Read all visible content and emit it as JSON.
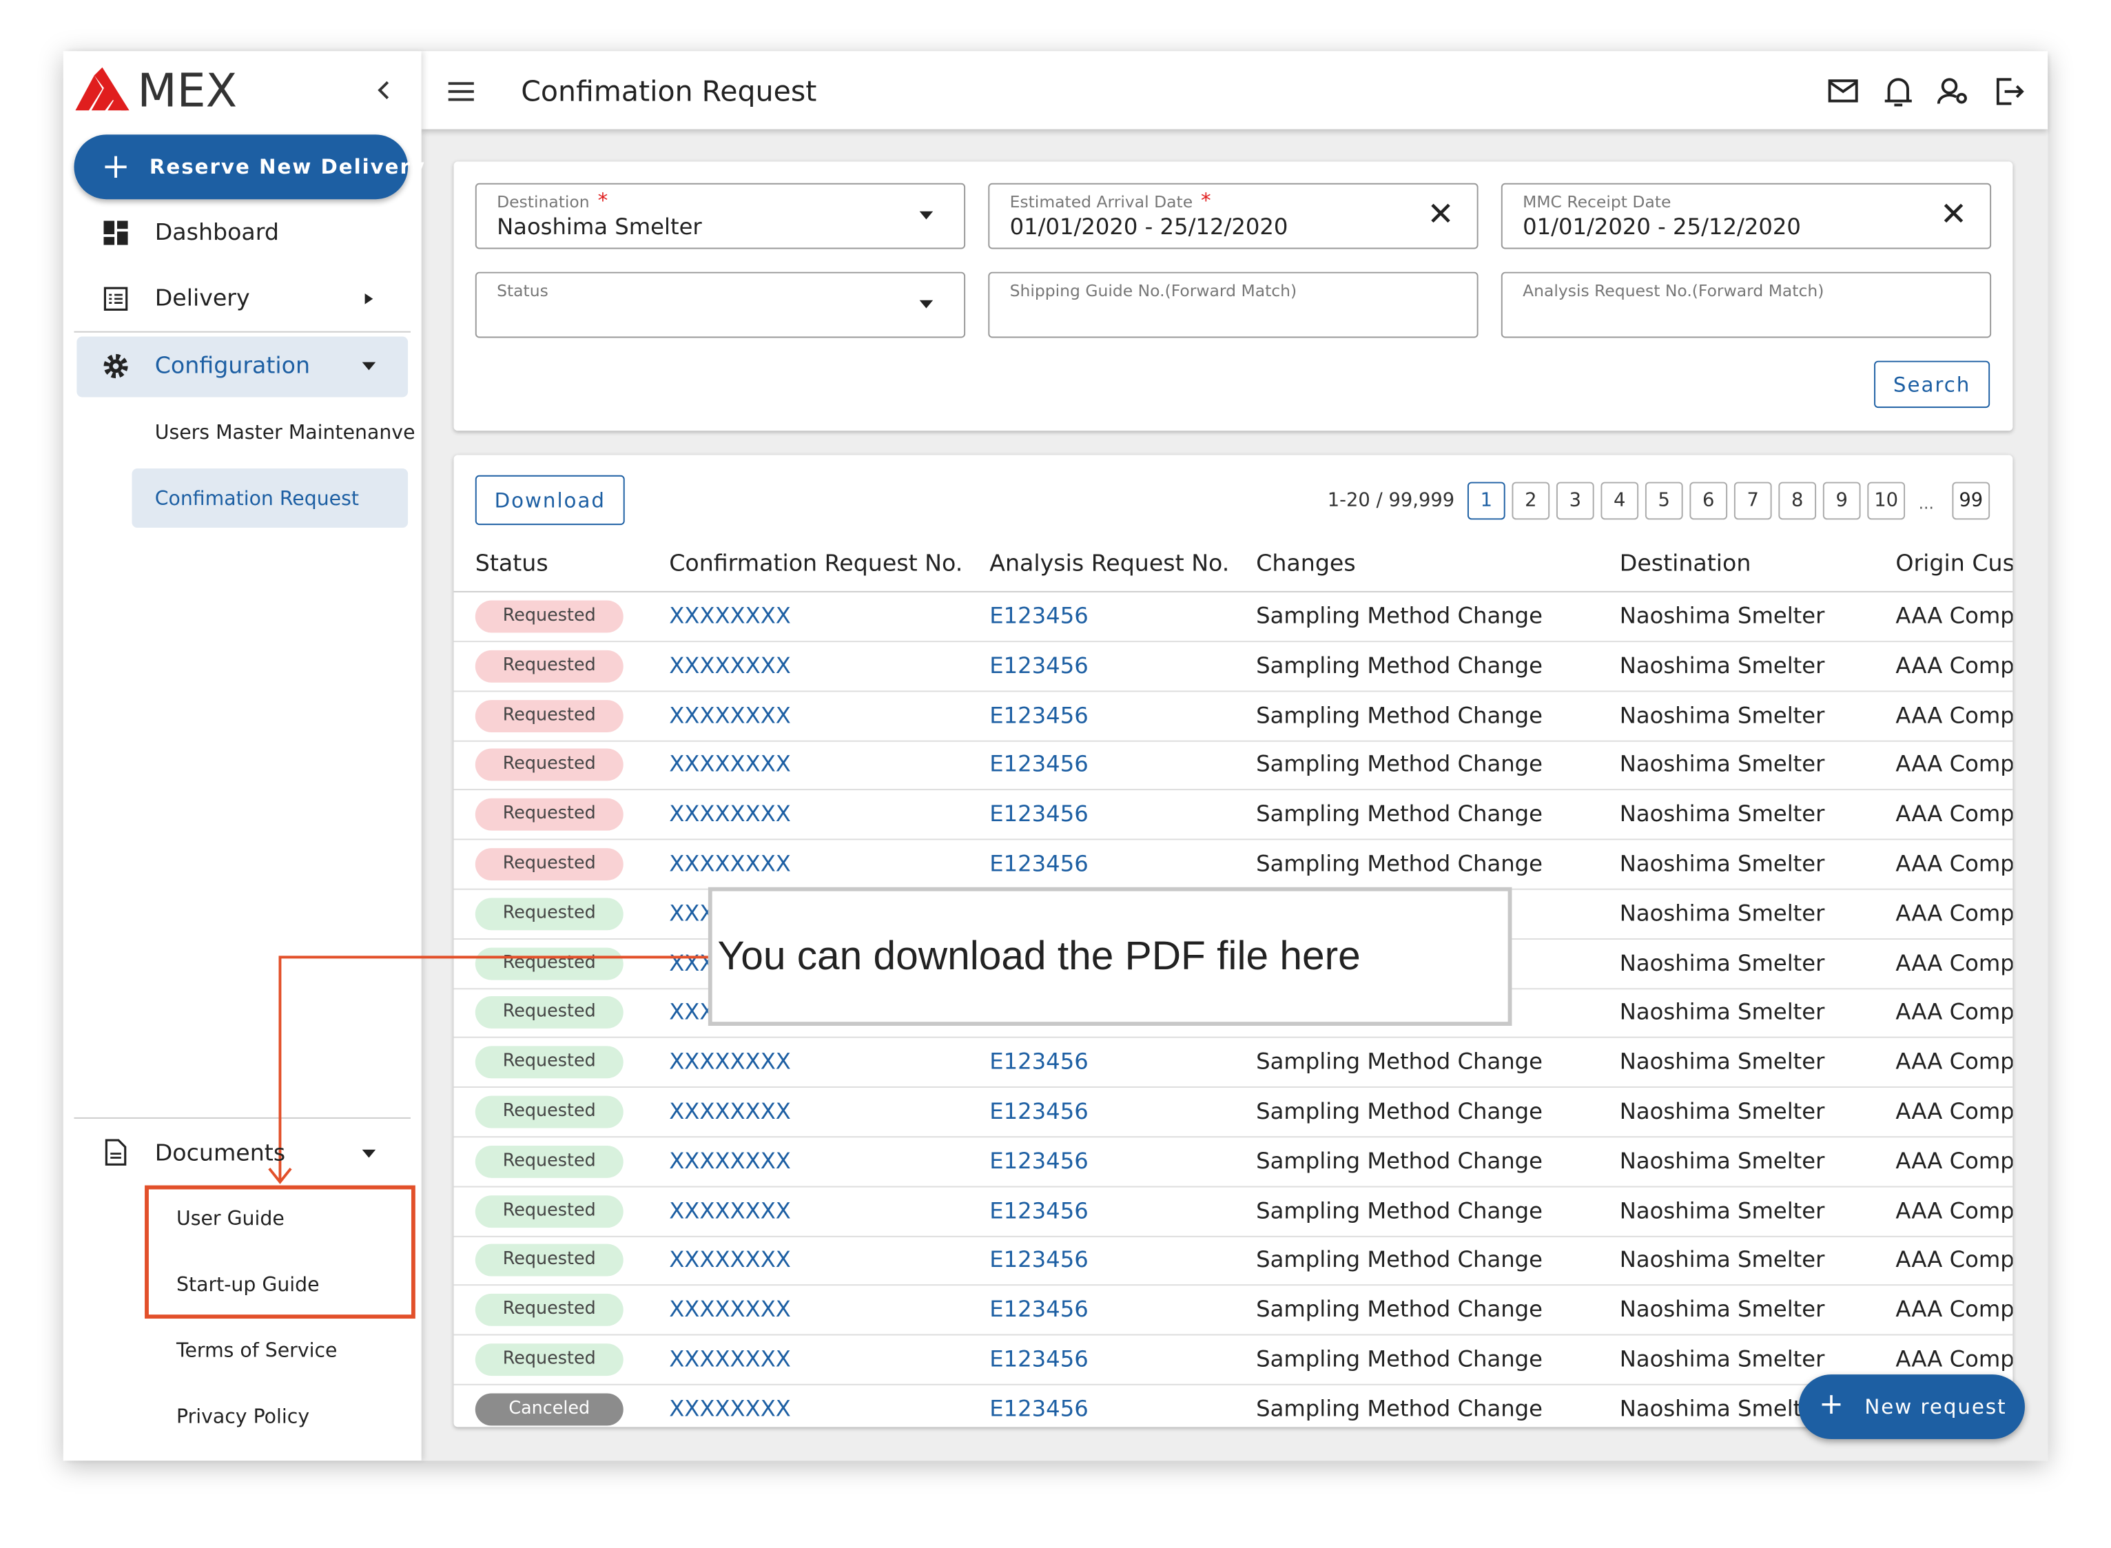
{
  "sidebar": {
    "logo": "MEX",
    "reserve_button": "Reserve New Delivery",
    "nav": [
      "Dashboard",
      "Delivery",
      "Configuration"
    ],
    "sub_items": [
      "Users Master Maintenanve",
      "Confimation Request"
    ],
    "documents": {
      "label": "Documents",
      "items": [
        "User Guide",
        "Start-up Guide",
        "Terms of Service",
        "Privacy Policy"
      ]
    }
  },
  "header": {
    "title": "Confimation Request"
  },
  "filters": {
    "required_mark": "*",
    "fields": [
      {
        "label": "Destination",
        "value": "Naoshima Smelter",
        "required": true
      },
      {
        "label": "Estimated Arrival Date",
        "value": "01/01/2020 - 25/12/2020",
        "required": true
      },
      {
        "label": "MMC Receipt Date",
        "value": "01/01/2020 - 25/12/2020",
        "required": false
      },
      {
        "label": "Status",
        "value": "",
        "required": false
      },
      {
        "label": "Shipping Guide No.(Forward Match)",
        "value": "",
        "required": false
      },
      {
        "label": "Analysis Request No.(Forward Match)",
        "value": "",
        "required": false
      }
    ],
    "search_button": "Search"
  },
  "download_button": "Download",
  "pagination": {
    "range": "1-20 / 99,999",
    "pages": [
      "1",
      "2",
      "3",
      "4",
      "5",
      "6",
      "7",
      "8",
      "9",
      "10"
    ],
    "ellipsis": "...",
    "last": "99"
  },
  "table": {
    "columns": [
      "Status",
      "Confirmation Request No.",
      "Analysis Request No.",
      "Changes",
      "Destination",
      "Origin Cust"
    ],
    "rows": [
      {
        "status": "Requested",
        "status_color": "#f9d2d4",
        "cells": [
          "XXXXXXXX",
          "E123456",
          "Sampling Method Change",
          "Naoshima Smelter",
          "AAA Compa"
        ]
      },
      {
        "status": "Requested",
        "status_color": "#f9d2d4",
        "cells": [
          "XXXXXXXX",
          "E123456",
          "Sampling Method Change",
          "Naoshima Smelter",
          "AAA Compa"
        ]
      },
      {
        "status": "Requested",
        "status_color": "#f9d2d4",
        "cells": [
          "XXXXXXXX",
          "E123456",
          "Sampling Method Change",
          "Naoshima Smelter",
          "AAA Compa"
        ]
      },
      {
        "status": "Requested",
        "status_color": "#f9d2d4",
        "cells": [
          "XXXXXXXX",
          "E123456",
          "Sampling Method Change",
          "Naoshima Smelter",
          "AAA Compa"
        ]
      },
      {
        "status": "Requested",
        "status_color": "#f9d2d4",
        "cells": [
          "XXXXXXXX",
          "E123456",
          "Sampling Method Change",
          "Naoshima Smelter",
          "AAA Compa"
        ]
      },
      {
        "status": "Requested",
        "status_color": "#f9d2d4",
        "cells": [
          "XXXXXXXX",
          "E123456",
          "Sampling Method Change",
          "Naoshima Smelter",
          "AAA Compa"
        ]
      },
      {
        "status": "Requested",
        "status_color": "#d8f1dd",
        "cells": [
          "XXX",
          "",
          "ge",
          "Naoshima Smelter",
          "AAA Compa"
        ]
      },
      {
        "status": "Requested",
        "status_color": "#d8f1dd",
        "cells": [
          "XXX",
          "",
          "ge",
          "Naoshima Smelter",
          "AAA Compa"
        ]
      },
      {
        "status": "Requested",
        "status_color": "#d8f1dd",
        "cells": [
          "XXX",
          "",
          "ge",
          "Naoshima Smelter",
          "AAA Compa"
        ]
      },
      {
        "status": "Requested",
        "status_color": "#d8f1dd",
        "cells": [
          "XXXXXXXX",
          "E123456",
          "Sampling Method Change",
          "Naoshima Smelter",
          "AAA Compa"
        ]
      },
      {
        "status": "Requested",
        "status_color": "#d8f1dd",
        "cells": [
          "XXXXXXXX",
          "E123456",
          "Sampling Method Change",
          "Naoshima Smelter",
          "AAA Compa"
        ]
      },
      {
        "status": "Requested",
        "status_color": "#d8f1dd",
        "cells": [
          "XXXXXXXX",
          "E123456",
          "Sampling Method Change",
          "Naoshima Smelter",
          "AAA Compa"
        ]
      },
      {
        "status": "Requested",
        "status_color": "#d8f1dd",
        "cells": [
          "XXXXXXXX",
          "E123456",
          "Sampling Method Change",
          "Naoshima Smelter",
          "AAA Compa"
        ]
      },
      {
        "status": "Requested",
        "status_color": "#d8f1dd",
        "cells": [
          "XXXXXXXX",
          "E123456",
          "Sampling Method Change",
          "Naoshima Smelter",
          "AAA Compa"
        ]
      },
      {
        "status": "Requested",
        "status_color": "#d8f1dd",
        "cells": [
          "XXXXXXXX",
          "E123456",
          "Sampling Method Change",
          "Naoshima Smelter",
          "AAA Compa"
        ]
      },
      {
        "status": "Requested",
        "status_color": "#d8f1dd",
        "cells": [
          "XXXXXXXX",
          "E123456",
          "Sampling Method Change",
          "Naoshima Smelter",
          "AAA Compa"
        ]
      },
      {
        "status": "Canceled",
        "status_color": "#8c8c8c",
        "cells": [
          "XXXXXXXX",
          "E123456",
          "Sampling Method Change",
          "Naoshima Smelt",
          ""
        ]
      }
    ]
  },
  "tooltip": "You can download the PDF file here",
  "new_request_button": "New request"
}
